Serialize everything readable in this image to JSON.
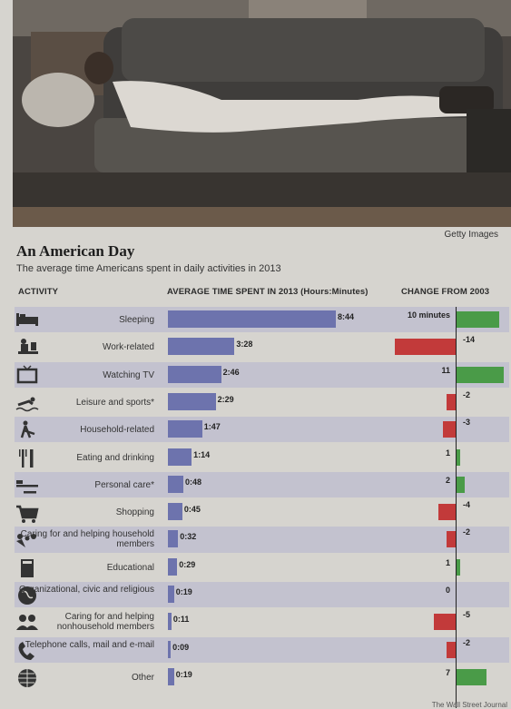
{
  "photo": {
    "credit": "Getty Images"
  },
  "title": "An American Day",
  "subtitle": "The average time Americans spent in daily activities in 2013",
  "columns": {
    "activity": "ACTIVITY",
    "time": "AVERAGE TIME SPENT IN 2013 (Hours:Minutes)",
    "change": "CHANGE FROM 2003"
  },
  "footer": "The Wall Street Journal",
  "colors": {
    "time_bar": "#6d73ad",
    "increase": "#4a9b48",
    "decrease": "#c23a3a",
    "band": "#c3c2cf"
  },
  "chart_data": {
    "type": "bar",
    "categories": [
      "Sleeping",
      "Work-related",
      "Watching TV",
      "Leisure and sports*",
      "Household-related",
      "Eating and drinking",
      "Personal care*",
      "Shopping",
      "Caring for and helping household members",
      "Educational",
      "Organizational, civic and religious",
      "Caring for and helping nonhousehold members",
      "Telephone calls, mail and e-mail",
      "Other"
    ],
    "icons": [
      "bed-icon",
      "desk-worker-icon",
      "tv-icon",
      "swimmer-icon",
      "broom-icon",
      "fork-knife-icon",
      "razor-icon",
      "shopping-cart-icon",
      "family-icon",
      "book-icon",
      "globe-icon",
      "people-icon",
      "phone-icon",
      "globe-grid-icon"
    ],
    "time_labels": [
      "8:44",
      "3:28",
      "2:46",
      "2:29",
      "1:47",
      "1:14",
      "0:48",
      "0:45",
      "0:32",
      "0:29",
      "0:19",
      "0:11",
      "0:09",
      "0:19"
    ],
    "time_minutes": [
      524,
      208,
      166,
      149,
      107,
      74,
      48,
      45,
      32,
      29,
      19,
      11,
      9,
      19
    ],
    "change_minutes": [
      10,
      -14,
      11,
      -2,
      -3,
      1,
      2,
      -4,
      -2,
      1,
      0,
      -5,
      -2,
      7
    ],
    "change_labels": [
      "10 minutes",
      "-14",
      "11",
      "-2",
      "-3",
      "1",
      "2",
      "-4",
      "-2",
      "1",
      "0",
      "-5",
      "-2",
      "7"
    ],
    "xlabel": "AVERAGE TIME SPENT IN 2013 (Hours:Minutes)"
  }
}
